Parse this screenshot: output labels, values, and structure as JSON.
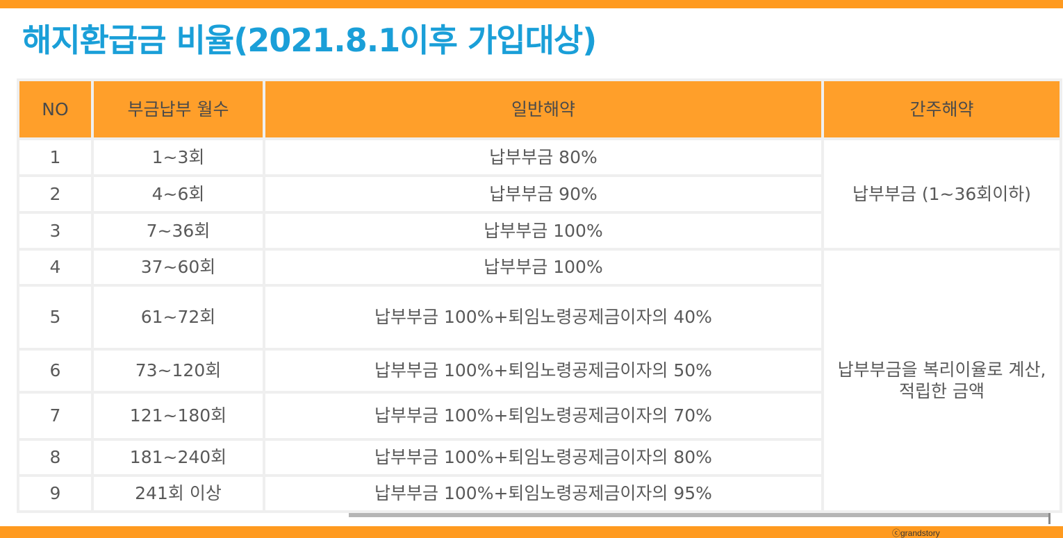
{
  "title": "해지환급금 비율(2021.8.1이후 가입대상)",
  "headers": {
    "no": "NO",
    "months": "부금납부 월수",
    "general": "일반해약",
    "deemed": "간주해약"
  },
  "rows": [
    {
      "no": "1",
      "months": "1~3회",
      "general": "납부부금 80%"
    },
    {
      "no": "2",
      "months": "4~6회",
      "general": "납부부금 90%"
    },
    {
      "no": "3",
      "months": "7~36회",
      "general": "납부부금 100%"
    },
    {
      "no": "4",
      "months": "37~60회",
      "general": "납부부금 100%"
    },
    {
      "no": "5",
      "months": "61~72회",
      "general": "납부부금 100%+퇴임노령공제금이자의 40%"
    },
    {
      "no": "6",
      "months": "73~120회",
      "general": "납부부금 100%+퇴임노령공제금이자의 50%"
    },
    {
      "no": "7",
      "months": "121~180회",
      "general": "납부부금 100%+퇴임노령공제금이자의 70%"
    },
    {
      "no": "8",
      "months": "181~240회",
      "general": "납부부금 100%+퇴임노령공제금이자의 80%"
    },
    {
      "no": "9",
      "months": "241회 이상",
      "general": "납부부금 100%+퇴임노령공제금이자의 95%"
    }
  ],
  "deemed_groups": [
    {
      "line1": "납부부금 (1~36회이하)",
      "line2": ""
    },
    {
      "line1": "납부부금을 복리이율로 계산,",
      "line2": "적립한 금액"
    }
  ],
  "footer": "ⓒgrandstory",
  "colors": {
    "accent": "#ff9a1f",
    "title": "#1a9fd8",
    "text": "#595959"
  }
}
